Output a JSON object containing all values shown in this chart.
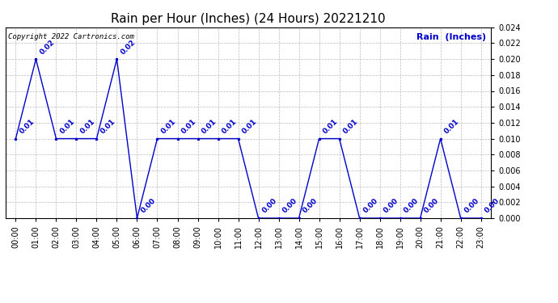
{
  "title": "Rain per Hour (Inches) (24 Hours) 20221210",
  "copyright_text": "Copyright 2022 Cartronics.com",
  "legend_label": "Rain  (Inches)",
  "background_color": "#ffffff",
  "plot_bg_color": "#ffffff",
  "line_color": "#0000cc",
  "grid_color": "#bbbbbb",
  "title_color": "#000000",
  "label_color": "#0000cc",
  "hours": [
    0,
    1,
    2,
    3,
    4,
    5,
    6,
    7,
    8,
    9,
    10,
    11,
    12,
    13,
    14,
    15,
    16,
    17,
    18,
    19,
    20,
    21,
    22,
    23
  ],
  "values": [
    0.01,
    0.02,
    0.01,
    0.01,
    0.01,
    0.02,
    0.0,
    0.01,
    0.01,
    0.01,
    0.01,
    0.01,
    0.0,
    0.0,
    0.0,
    0.01,
    0.01,
    0.0,
    0.0,
    0.0,
    0.0,
    0.01,
    0.0,
    0.0
  ],
  "ylim": [
    0.0,
    0.024
  ],
  "yticks": [
    0.0,
    0.002,
    0.004,
    0.006,
    0.008,
    0.01,
    0.012,
    0.014,
    0.016,
    0.018,
    0.02,
    0.022,
    0.024
  ],
  "title_fontsize": 11,
  "tick_fontsize": 7,
  "annotation_fontsize": 6.5,
  "legend_fontsize": 8,
  "copyright_fontsize": 6.5
}
